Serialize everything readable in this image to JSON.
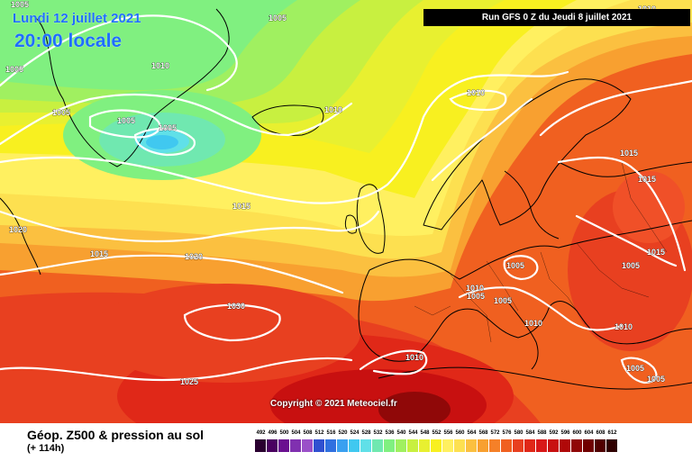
{
  "header": {
    "date": "Lundi 12 juillet 2021",
    "local_time": "20:00 locale",
    "run_info": "Run GFS 0 Z du Jeudi 8 juillet 2021"
  },
  "copyright": "Copyright © 2021 Meteociel.fr",
  "footer": {
    "title": "Géop. Z500 & pression au sol",
    "subtitle": "(+ 114h)"
  },
  "legend": {
    "values": [
      "492",
      "496",
      "500",
      "504",
      "508",
      "512",
      "516",
      "520",
      "524",
      "528",
      "532",
      "536",
      "540",
      "544",
      "548",
      "552",
      "556",
      "560",
      "564",
      "568",
      "572",
      "576",
      "580",
      "584",
      "588",
      "592",
      "596",
      "600",
      "604",
      "608",
      "612"
    ],
    "colors": [
      "#2a0030",
      "#4a0060",
      "#6a1090",
      "#8030b0",
      "#9a50c8",
      "#3050d0",
      "#3070e0",
      "#3aa0f0",
      "#40c8f0",
      "#60e0e8",
      "#70e8b0",
      "#80f080",
      "#a0f060",
      "#c8f040",
      "#e8f030",
      "#f8f020",
      "#fff060",
      "#fde050",
      "#fbc040",
      "#f8a030",
      "#f58028",
      "#f06020",
      "#e84020",
      "#e02818",
      "#d81818",
      "#c81010",
      "#b00808",
      "#900808",
      "#700000",
      "#500000",
      "#300000"
    ]
  },
  "isobars": [
    "1005",
    "1005",
    "1005",
    "1005",
    "1010",
    "1010",
    "1010",
    "1005",
    "1010",
    "1005",
    "1015",
    "1020",
    "1015",
    "1020",
    "1030",
    "1025",
    "1015",
    "1015",
    "1015",
    "1005",
    "1010",
    "1005",
    "1005",
    "1010",
    "1010",
    "1010",
    "1005",
    "1005",
    "1005"
  ],
  "colors": {
    "label_blue": "#1f6fff",
    "isobar": "#ffffff",
    "coast": "#000000"
  }
}
